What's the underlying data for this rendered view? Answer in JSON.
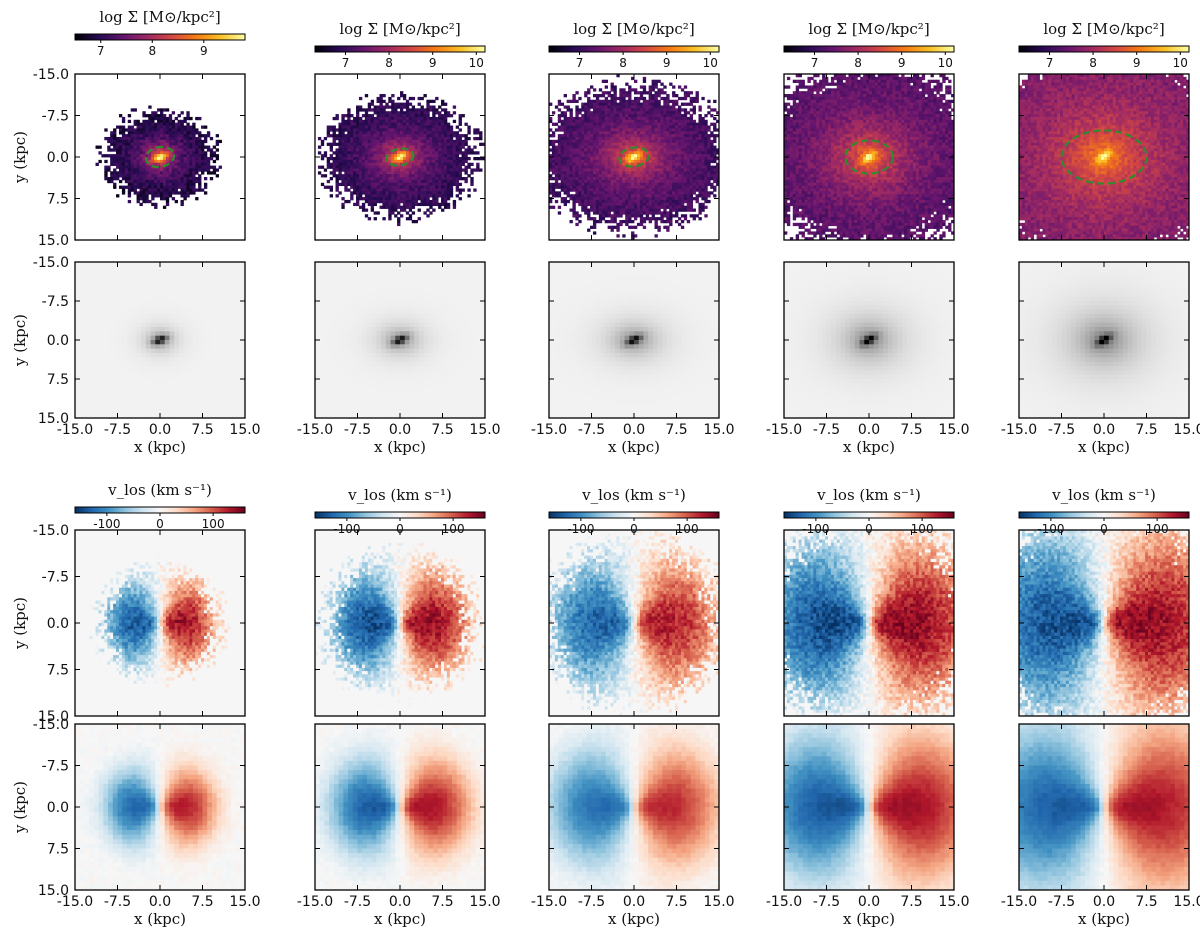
{
  "figure": {
    "density_colorbar_label": "log Σ [M⊙/kpc²]",
    "velocity_colorbar_label": "v_los (km s⁻¹)",
    "xlabel": "x (kpc)",
    "ylabel": "y (kpc)"
  },
  "colors": {
    "ellipse": "#2e8b2e",
    "frame": "#000000",
    "background": "#ffffff"
  },
  "chart_data": [
    {
      "type": "heatmap",
      "name": "surface-density-maps",
      "colormap": "inferno",
      "colorbar_label": "log Σ [M⊙/kpc²]",
      "xlabel": "x (kpc)",
      "ylabel": "y (kpc)",
      "xlim": [
        -15,
        15
      ],
      "ylim": [
        15,
        -15
      ],
      "xticks": [
        "-15.0",
        "-7.5",
        "0.0",
        "7.5",
        "15.0"
      ],
      "yticks": [
        "-15.0",
        "-7.5",
        "0.0",
        "7.5",
        "15.0"
      ],
      "columns": [
        {
          "clim": [
            6.5,
            9.8
          ],
          "cticks": [
            "7",
            "8",
            "9"
          ],
          "core_value": 9.6,
          "outer_value": 6.8,
          "disk_rx_kpc": 6.5,
          "disk_ry_kpc": 5.5,
          "ellipse": {
            "rx": 2.5,
            "ry": 1.8,
            "angle": -10
          },
          "bar_angle": -25
        },
        {
          "clim": [
            6.3,
            10.2
          ],
          "cticks": [
            "7",
            "8",
            "9",
            "10"
          ],
          "core_value": 10.0,
          "outer_value": 6.8,
          "disk_rx_kpc": 9.0,
          "disk_ry_kpc": 7.0,
          "ellipse": {
            "rx": 2.4,
            "ry": 1.5,
            "angle": -10
          },
          "bar_angle": -30
        },
        {
          "clim": [
            6.3,
            10.2
          ],
          "cticks": [
            "7",
            "8",
            "9",
            "10"
          ],
          "core_value": 10.0,
          "outer_value": 7.0,
          "disk_rx_kpc": 11.5,
          "disk_ry_kpc": 8.5,
          "ellipse": {
            "rx": 2.6,
            "ry": 1.7,
            "angle": -8
          },
          "bar_angle": -30
        },
        {
          "clim": [
            6.3,
            10.2
          ],
          "cticks": [
            "7",
            "8",
            "9",
            "10"
          ],
          "core_value": 10.0,
          "outer_value": 7.2,
          "disk_rx_kpc": 13.5,
          "disk_ry_kpc": 11.5,
          "ellipse": {
            "rx": 4.2,
            "ry": 3.0,
            "angle": 0
          },
          "bar_angle": -35
        },
        {
          "clim": [
            6.3,
            10.2
          ],
          "cticks": [
            "7",
            "8",
            "9",
            "10"
          ],
          "core_value": 10.0,
          "outer_value": 7.6,
          "disk_rx_kpc": 16,
          "disk_ry_kpc": 14,
          "ellipse": {
            "rx": 7.5,
            "ry": 4.8,
            "angle": 0
          },
          "bar_angle": -35
        }
      ]
    },
    {
      "type": "heatmap",
      "name": "velocity-maps",
      "colormap": "RdBu_r",
      "colorbar_label": "v_los (km s⁻¹)",
      "xlabel": "x (kpc)",
      "ylabel": "y (kpc)",
      "xlim": [
        -15,
        15
      ],
      "ylim": [
        15,
        -15
      ],
      "xticks": [
        "-15.0",
        "-7.5",
        "0.0",
        "7.5",
        "15.0"
      ],
      "yticks": [
        "-15.0",
        "-7.5",
        "0.0",
        "7.5",
        "15.0"
      ],
      "clim": [
        -160,
        160
      ],
      "cticks": [
        "-100",
        "0",
        "100"
      ],
      "columns": [
        {
          "vmax_kms": 150,
          "scale_kpc": 4.5,
          "extent_kpc": 8
        },
        {
          "vmax_kms": 155,
          "scale_kpc": 5,
          "extent_kpc": 10
        },
        {
          "vmax_kms": 140,
          "scale_kpc": 6,
          "extent_kpc": 12
        },
        {
          "vmax_kms": 155,
          "scale_kpc": 8,
          "extent_kpc": 15
        },
        {
          "vmax_kms": 150,
          "scale_kpc": 9,
          "extent_kpc": 17
        }
      ]
    }
  ]
}
